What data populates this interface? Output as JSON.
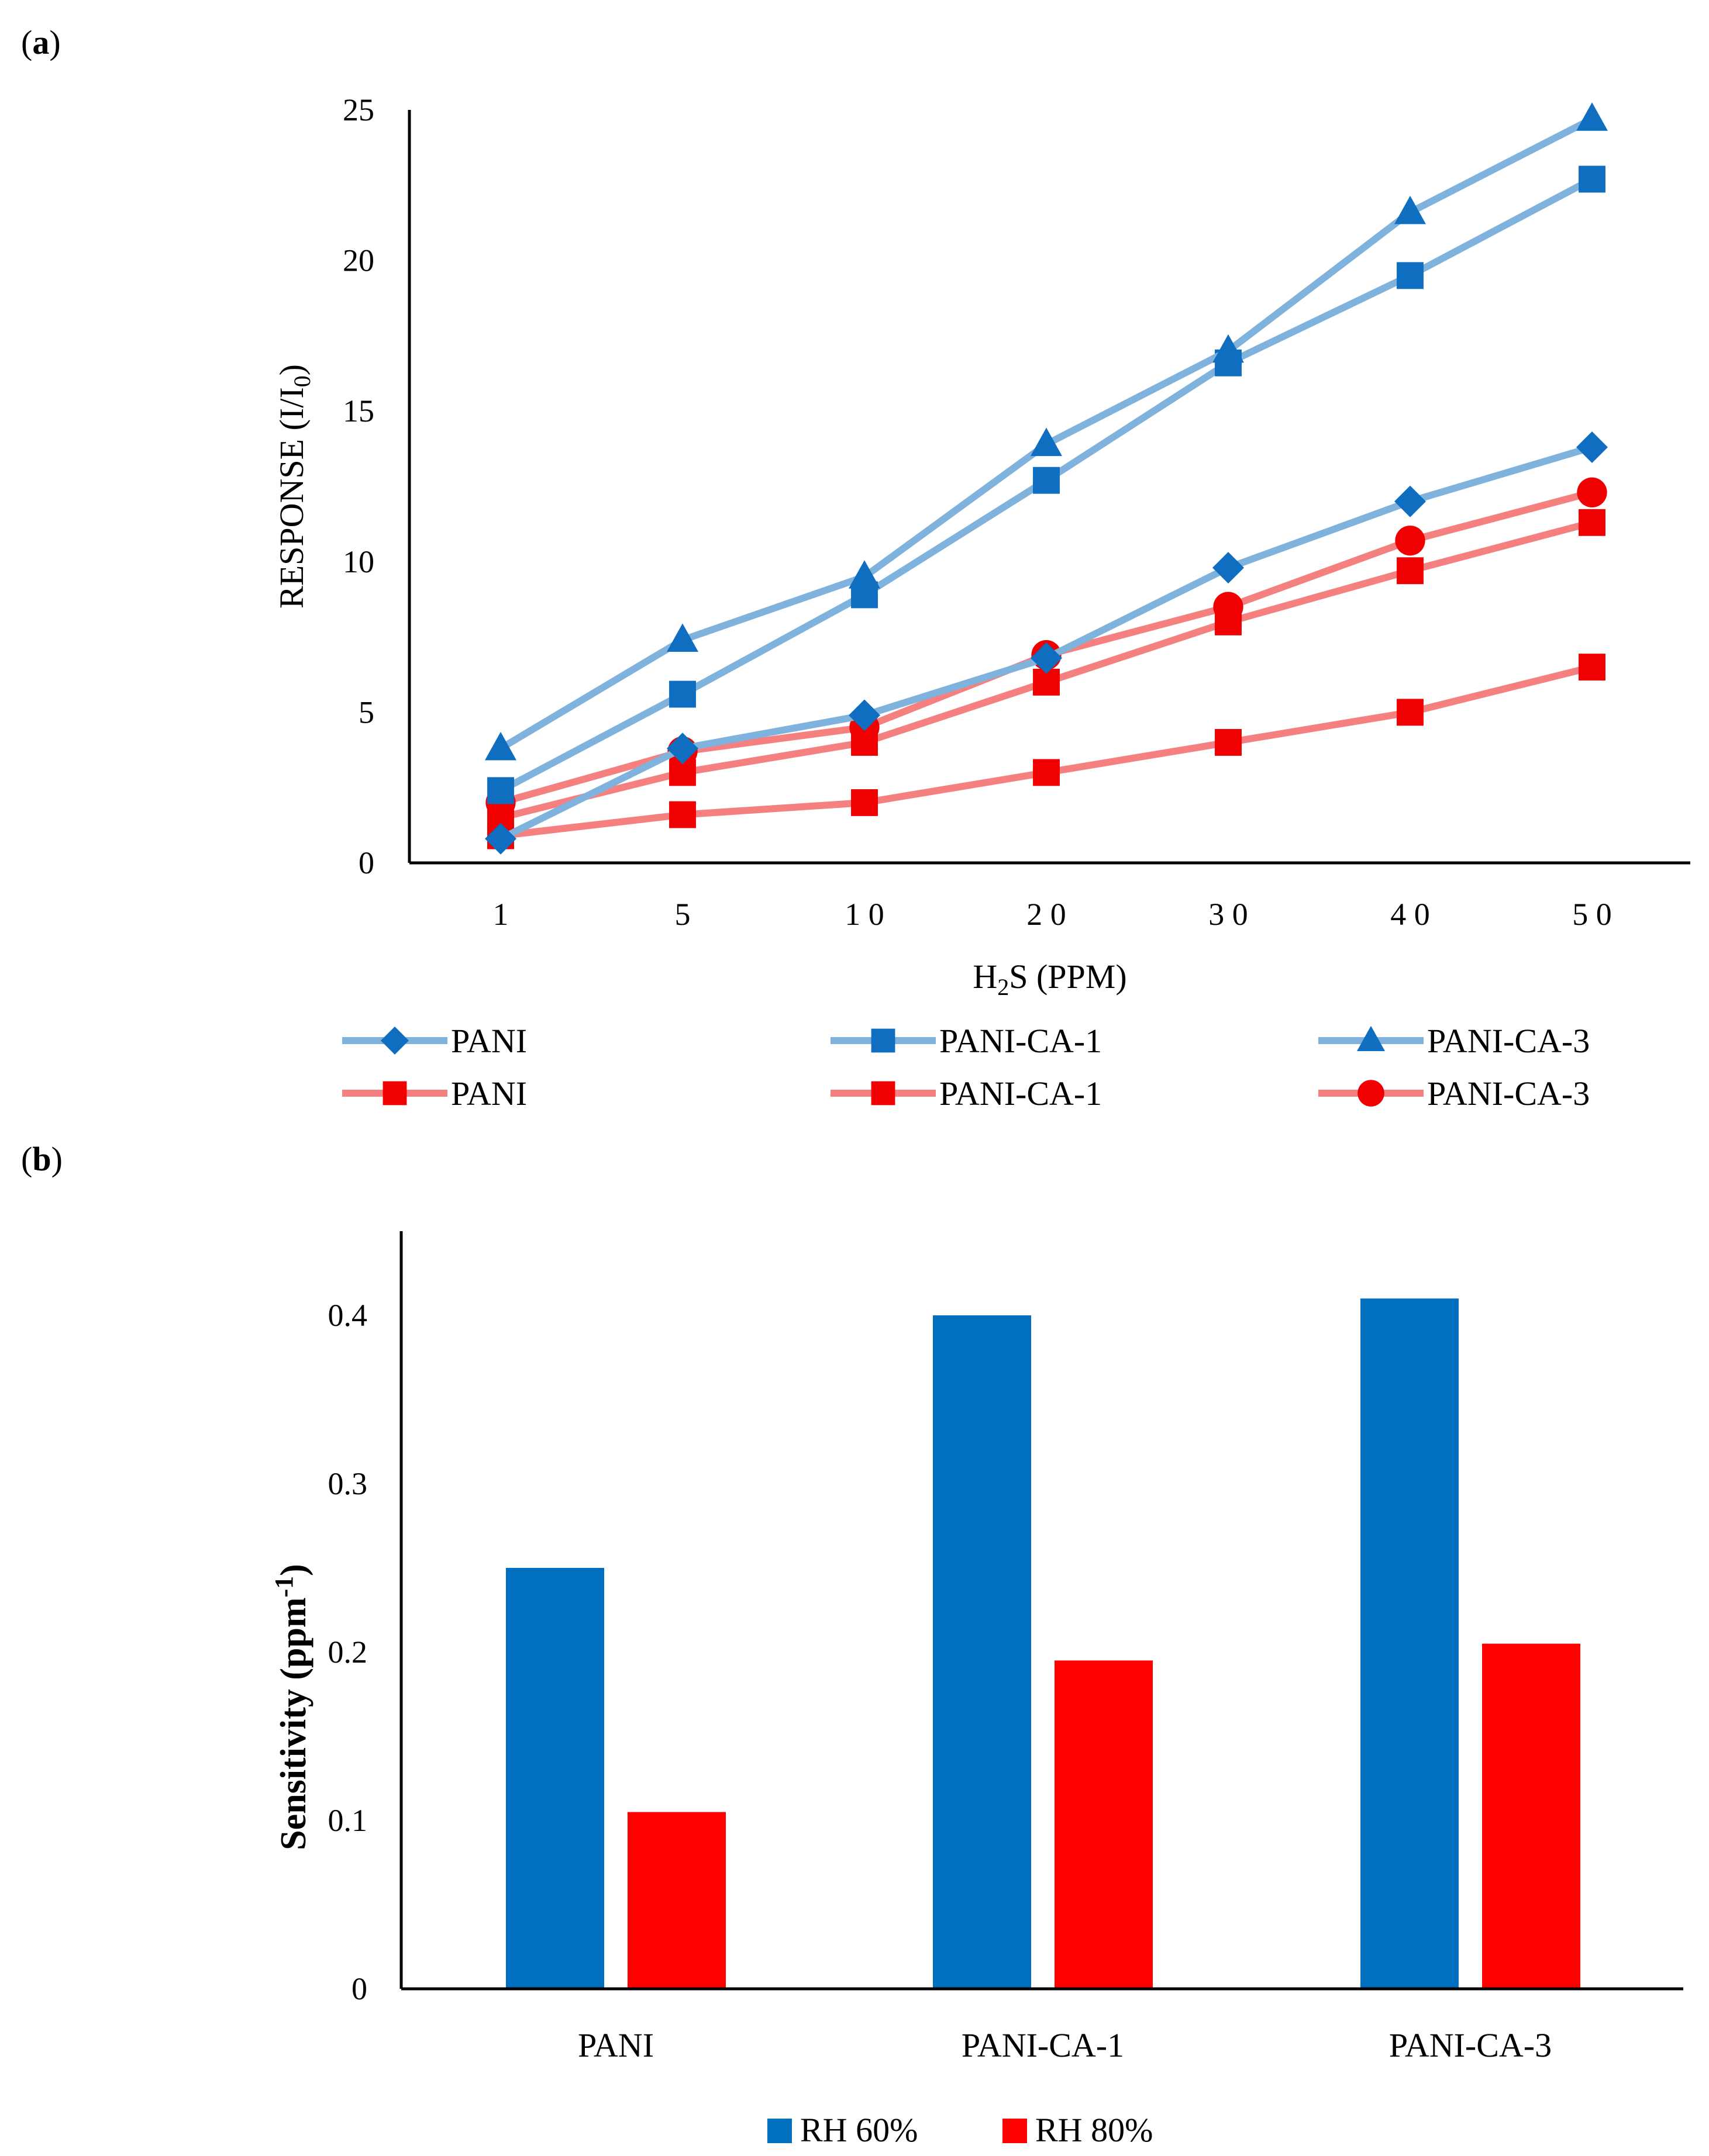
{
  "chart_data": [
    {
      "panel": "(a)",
      "panel_letter": "a",
      "type": "line",
      "xlabel": {
        "pre": "H",
        "sub": "2",
        "post": "S (PPM)"
      },
      "ylabel": {
        "pre": "RESPONSE (I/I",
        "sub": "0",
        "post": ")"
      },
      "categories": [
        "1",
        "5",
        "10",
        "20",
        "30",
        "40",
        "50"
      ],
      "category_labels": [
        "1",
        "5",
        "1 0",
        "2 0",
        "3 0",
        "4 0",
        "5 0"
      ],
      "ylim": [
        0,
        25
      ],
      "yticks": [
        0,
        5,
        10,
        15,
        20,
        25
      ],
      "colors": {
        "blue_line": "#7FB2DC",
        "blue_marker": "#0F6EC0",
        "red_line": "#F58080",
        "red_marker": "#F00000"
      },
      "series": [
        {
          "name": "PANI",
          "group": "blue",
          "marker": "diamond",
          "values": [
            0.8,
            3.8,
            4.9,
            6.8,
            9.8,
            12.0,
            13.8
          ]
        },
        {
          "name": "PANI-CA-1",
          "group": "blue",
          "marker": "square",
          "values": [
            2.4,
            5.6,
            8.9,
            12.7,
            16.6,
            19.5,
            22.7
          ]
        },
        {
          "name": "PANI-CA-3",
          "group": "blue",
          "marker": "triangle",
          "values": [
            3.8,
            7.4,
            9.5,
            13.9,
            17.0,
            21.6,
            24.7
          ]
        },
        {
          "name": "PANI",
          "group": "red",
          "marker": "square",
          "values": [
            0.9,
            1.6,
            2.0,
            3.0,
            4.0,
            5.0,
            6.5
          ]
        },
        {
          "name": "PANI-CA-1",
          "group": "red",
          "marker": "square",
          "values": [
            1.5,
            3.0,
            4.0,
            6.0,
            8.0,
            9.7,
            11.3
          ]
        },
        {
          "name": "PANI-CA-3",
          "group": "red",
          "marker": "circle",
          "values": [
            2.0,
            3.7,
            4.5,
            6.9,
            8.5,
            10.7,
            12.3
          ]
        }
      ]
    },
    {
      "panel": "(b)",
      "panel_letter": "b",
      "type": "bar",
      "ylabel": {
        "pre": "Sensitivity  (ppm",
        "sup": "-1",
        "post": ")"
      },
      "categories": [
        "PANI",
        "PANI-CA-1",
        "PANI-CA-3"
      ],
      "ylim": [
        0,
        0.45
      ],
      "yticks": [
        0,
        0.1,
        0.2,
        0.3,
        0.4
      ],
      "ytick_labels": [
        "0",
        "0.1",
        "0.2",
        "0.3",
        "0.4"
      ],
      "series": [
        {
          "name": "RH 60%",
          "color": "#006FC0",
          "values": [
            0.25,
            0.4,
            0.41
          ]
        },
        {
          "name": "RH 80%",
          "color": "#FF0000",
          "values": [
            0.105,
            0.195,
            0.205
          ]
        }
      ]
    }
  ]
}
